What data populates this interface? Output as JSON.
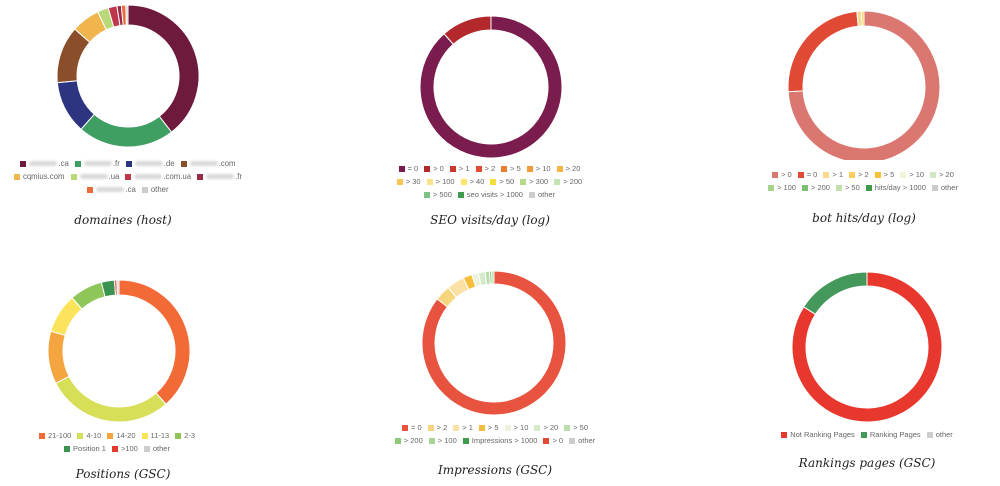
{
  "chart_data": [
    {
      "type": "pie",
      "donut": true,
      "title": "domaines (host)",
      "series": [
        {
          "name": ".ca",
          "value": 39.5,
          "color": "#6e1a3d",
          "blurred": true
        },
        {
          "name": ".fr",
          "value": 22,
          "color": "#3f9e62",
          "blurred": true
        },
        {
          "name": ".de",
          "value": 12,
          "color": "#2e3580",
          "blurred": true
        },
        {
          "name": ".com",
          "value": 13,
          "color": "#8a4e2a",
          "blurred": true
        },
        {
          "name": "cqmius.com",
          "value": 6.5,
          "color": "#f0b64d",
          "blurred": false
        },
        {
          "name": ".ua",
          "value": 2.5,
          "color": "#b8d87a",
          "blurred": true
        },
        {
          "name": ".com.ua",
          "value": 2,
          "color": "#c0364a",
          "blurred": true
        },
        {
          "name": ".fr",
          "value": 1,
          "color": "#9b2b46",
          "blurred": true
        },
        {
          "name": ".ca",
          "value": 1,
          "color": "#ea6a3a",
          "blurred": true
        },
        {
          "name": "other",
          "value": 0.5,
          "color": "#cccccc",
          "blurred": false
        }
      ]
    },
    {
      "type": "pie",
      "donut": true,
      "title": "SEO visits/day (log)",
      "series": [
        {
          "name": "= 0",
          "value": 88.5,
          "color": "#7b1c4e"
        },
        {
          "name": "> 0",
          "value": 11.5,
          "color": "#b3292b"
        },
        {
          "name": "> 1",
          "value": 0,
          "color": "#c83a2f"
        },
        {
          "name": "> 2",
          "value": 0,
          "color": "#e14b2f"
        },
        {
          "name": "> 5",
          "value": 0,
          "color": "#ec7c32"
        },
        {
          "name": "> 10",
          "value": 0,
          "color": "#f19a3a"
        },
        {
          "name": "> 20",
          "value": 0,
          "color": "#f6b545"
        },
        {
          "name": "> 30",
          "value": 0,
          "color": "#f8c652"
        },
        {
          "name": "> 100",
          "value": 0,
          "color": "#fbe18a"
        },
        {
          "name": "> 40",
          "value": 0,
          "color": "#fbe56a"
        },
        {
          "name": "> 50",
          "value": 0,
          "color": "#f4de3c"
        },
        {
          "name": "> 300",
          "value": 0,
          "color": "#b6d98a"
        },
        {
          "name": "> 200",
          "value": 0,
          "color": "#c5e3b3"
        },
        {
          "name": "> 500",
          "value": 0,
          "color": "#7cc284"
        },
        {
          "name": "seo visits > 1000",
          "value": 0,
          "color": "#3f9c4f"
        },
        {
          "name": "other",
          "value": 0,
          "color": "#cccccc"
        }
      ]
    },
    {
      "type": "pie",
      "donut": true,
      "title": "bot hits/day (log)",
      "series": [
        {
          "name": "> 0",
          "value": 74,
          "color": "#db7771"
        },
        {
          "name": "= 0",
          "value": 24.5,
          "color": "#e04a35"
        },
        {
          "name": "> 1",
          "value": 1,
          "color": "#f9d98e"
        },
        {
          "name": "> 2",
          "value": 0.5,
          "color": "#f7cf5e"
        },
        {
          "name": "> 5",
          "value": 0,
          "color": "#f5c23a"
        },
        {
          "name": "> 10",
          "value": 0,
          "color": "#f3f3d8"
        },
        {
          "name": "> 20",
          "value": 0,
          "color": "#d3e7c7"
        },
        {
          "name": "> 100",
          "value": 0,
          "color": "#a6d48f"
        },
        {
          "name": "> 200",
          "value": 0,
          "color": "#7bbf71"
        },
        {
          "name": "> 50",
          "value": 0,
          "color": "#c2e0a8"
        },
        {
          "name": "hits/day > 1000",
          "value": 0,
          "color": "#3d9a48"
        },
        {
          "name": "other",
          "value": 0,
          "color": "#cccccc"
        }
      ]
    },
    {
      "type": "pie",
      "donut": true,
      "title": "Positions (GSC)",
      "series": [
        {
          "name": "21-100",
          "value": 38.5,
          "color": "#f26a36"
        },
        {
          "name": "4-10",
          "value": 29,
          "color": "#d7de57"
        },
        {
          "name": "14-20",
          "value": 12,
          "color": "#f5a53f"
        },
        {
          "name": "11-13",
          "value": 9,
          "color": "#fbe45c"
        },
        {
          "name": "2-3",
          "value": 7.5,
          "color": "#8fc65a"
        },
        {
          "name": "Position 1",
          "value": 3,
          "color": "#3a9350"
        },
        {
          "name": ">100",
          "value": 0.5,
          "color": "#e33a2e"
        },
        {
          "name": "other",
          "value": 0.5,
          "color": "#cccccc"
        }
      ]
    },
    {
      "type": "pie",
      "donut": true,
      "title": "Impressions (GSC)",
      "series": [
        {
          "name": "= 0",
          "value": 85.5,
          "color": "#e8533f"
        },
        {
          "name": "> 2",
          "value": 3.5,
          "color": "#f7d57c"
        },
        {
          "name": "> 1",
          "value": 4,
          "color": "#fbe1a6"
        },
        {
          "name": "> 5",
          "value": 2,
          "color": "#f5bf3d"
        },
        {
          "name": "> 10",
          "value": 1.5,
          "color": "#ecf2dc"
        },
        {
          "name": "> 20",
          "value": 1.5,
          "color": "#d5e9cb"
        },
        {
          "name": "> 50",
          "value": 1,
          "color": "#b9deac"
        },
        {
          "name": "> 200",
          "value": 0.5,
          "color": "#8ec879"
        },
        {
          "name": "> 100",
          "value": 0.5,
          "color": "#a7d596"
        },
        {
          "name": "Impressions > 1000",
          "value": 0,
          "color": "#3f9c4c"
        },
        {
          "name": "> 0",
          "value": 0,
          "color": "#e04a35"
        },
        {
          "name": "other",
          "value": 0,
          "color": "#cccccc"
        }
      ]
    },
    {
      "type": "pie",
      "donut": true,
      "title": "Rankings pages (GSC)",
      "series": [
        {
          "name": "Not Ranking Pages",
          "value": 84,
          "color": "#e8382e"
        },
        {
          "name": "Ranking Pages",
          "value": 16,
          "color": "#43985a"
        },
        {
          "name": "other",
          "value": 0,
          "color": "#cccccc"
        }
      ]
    }
  ]
}
